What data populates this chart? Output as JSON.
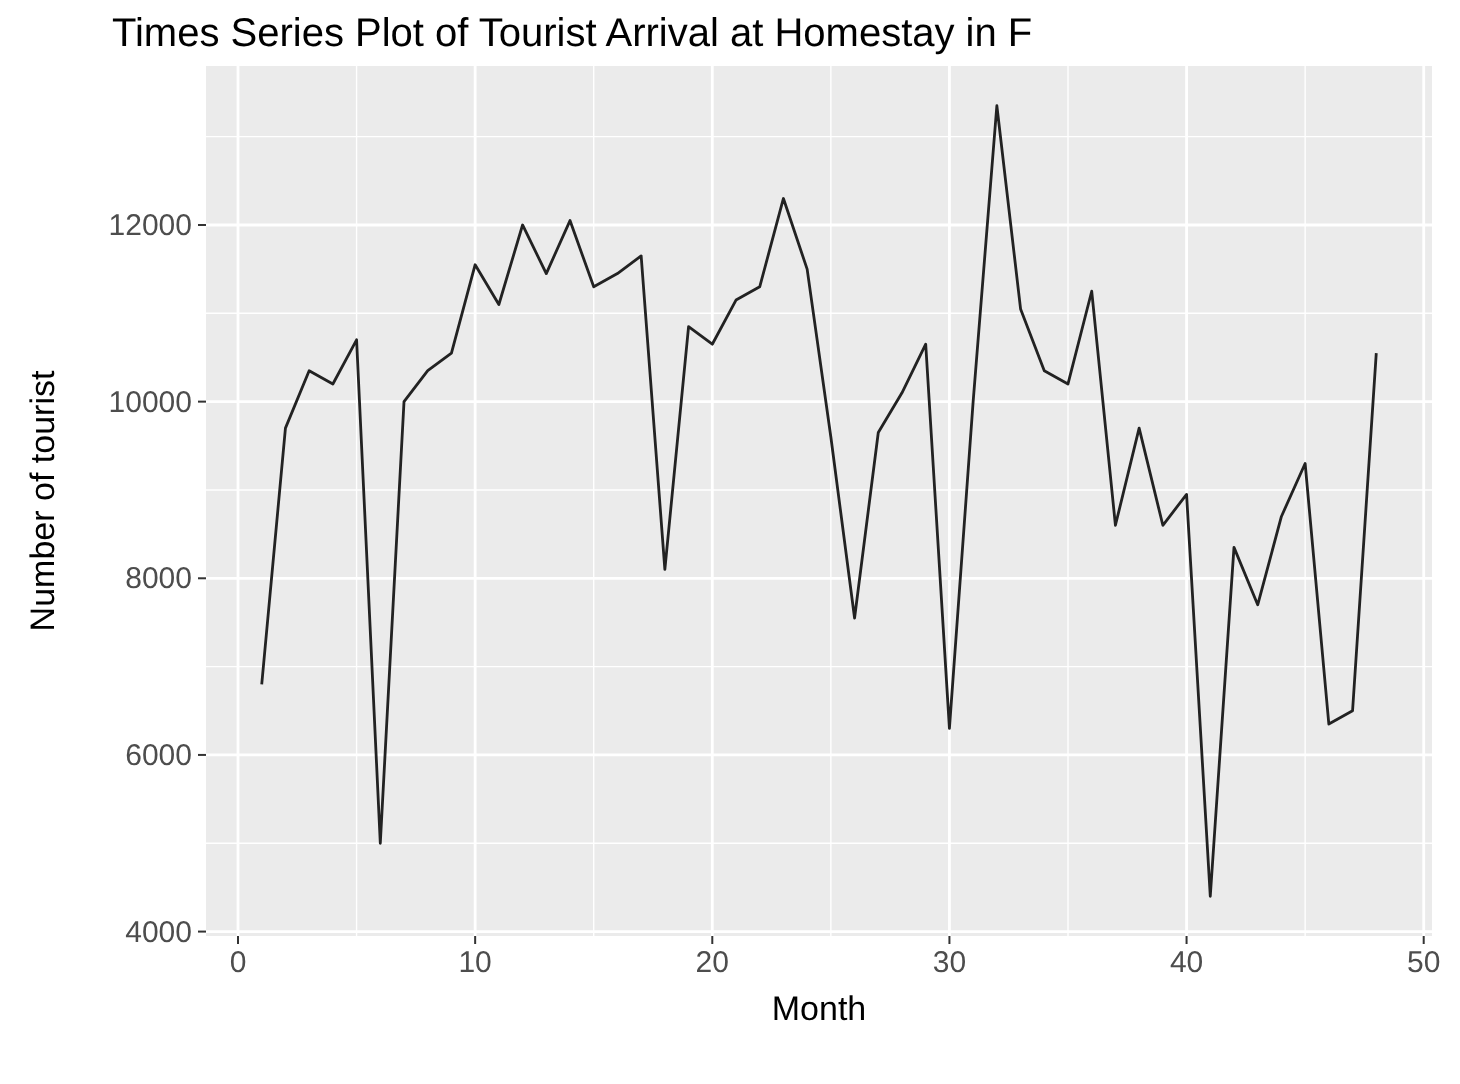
{
  "chart_data": {
    "type": "line",
    "title": "Times Series Plot of Tourist Arrival at Homestay in F",
    "xlabel": "Month",
    "ylabel": "Number of tourist",
    "x": [
      1,
      2,
      3,
      4,
      5,
      6,
      7,
      8,
      9,
      10,
      11,
      12,
      13,
      14,
      15,
      16,
      17,
      18,
      19,
      20,
      21,
      22,
      23,
      24,
      25,
      26,
      27,
      28,
      29,
      30,
      31,
      32,
      33,
      34,
      35,
      36,
      37,
      38,
      39,
      40,
      41,
      42,
      43,
      44,
      45,
      46,
      47,
      48
    ],
    "series": [
      {
        "color": "#222222",
        "values": [
          6800,
          9700,
          10350,
          10200,
          10700,
          5000,
          10000,
          10350,
          10550,
          11550,
          11100,
          12000,
          11450,
          12050,
          11300,
          11450,
          11650,
          8100,
          10850,
          10650,
          11150,
          11300,
          12300,
          11500,
          9600,
          7550,
          9650,
          10100,
          10650,
          6300,
          10000,
          13350,
          11050,
          10350,
          10200,
          11250,
          8600,
          9700,
          8600,
          8950,
          4400,
          8350,
          7700,
          8700,
          9300,
          6350,
          6500,
          10550
        ]
      }
    ],
    "xlim": [
      -1.35,
      50.35
    ],
    "ylim": [
      3950,
      13800
    ],
    "xticks": [
      0,
      10,
      20,
      30,
      40,
      50
    ],
    "yticks": [
      4000,
      6000,
      8000,
      10000,
      12000
    ],
    "grid": true,
    "line_style": "solid",
    "marker": "none"
  }
}
